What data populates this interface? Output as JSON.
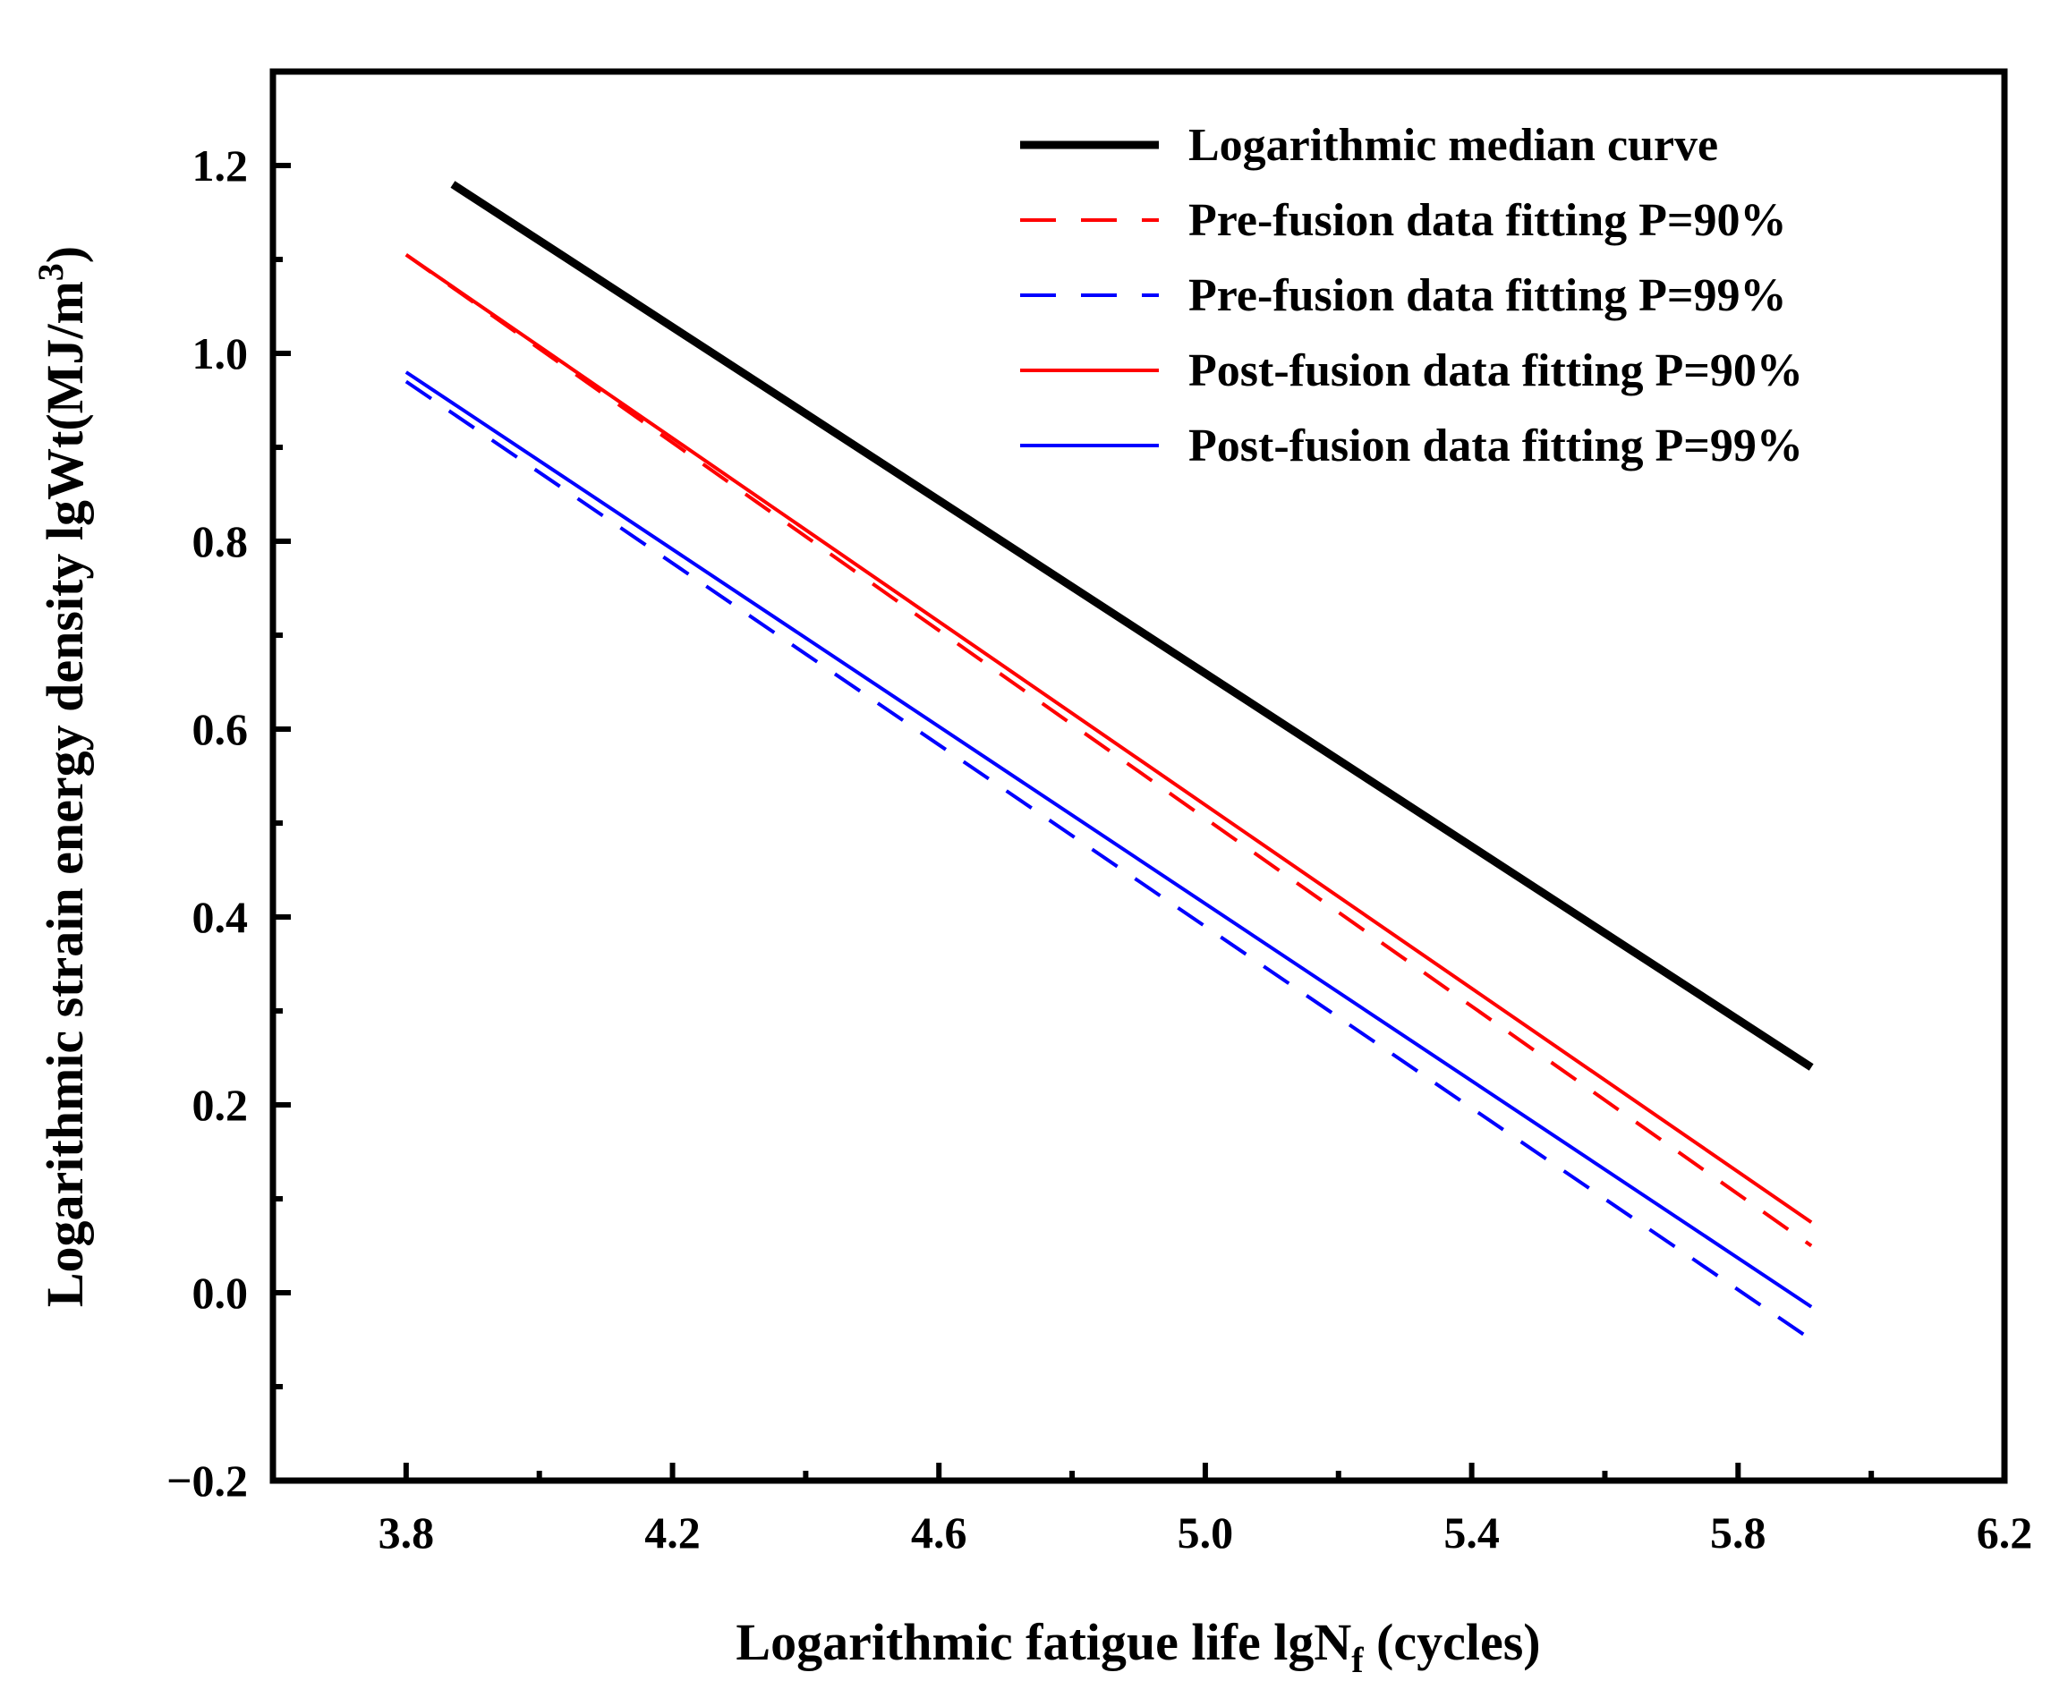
{
  "chart_data": {
    "type": "line",
    "xlabel": {
      "main": "Logarithmic fatigue life  lgN",
      "sub": "f",
      "suffix": " (cycles)"
    },
    "ylabel": {
      "main": "Logarithmic strain energy density  lgWt(MJ/m",
      "sup": "3",
      "suffix": ")"
    },
    "xlim": [
      3.6,
      6.2
    ],
    "ylim": [
      -0.2,
      1.3
    ],
    "xticks": [
      3.8,
      4.2,
      4.6,
      5.0,
      5.4,
      5.8,
      6.2
    ],
    "xtick_labels": [
      "3.8",
      "4.2",
      "4.6",
      "5.0",
      "5.4",
      "5.8",
      "6.2"
    ],
    "yticks": [
      -0.2,
      0.0,
      0.2,
      0.4,
      0.6,
      0.8,
      1.0,
      1.2
    ],
    "ytick_labels": [
      "−0.2",
      "0.0",
      "0.2",
      "0.4",
      "0.6",
      "0.8",
      "1.0",
      "1.2"
    ],
    "grid": false,
    "legend_position": "top-right",
    "series": [
      {
        "name": "Logarithmic median curve",
        "color": "#000000",
        "style": "solid",
        "width": "thick",
        "x": [
          3.87,
          5.91
        ],
        "y": [
          1.18,
          0.24
        ]
      },
      {
        "name": "Pre-fusion data fitting P=90%",
        "color": "#ff0000",
        "style": "dashed",
        "width": "normal",
        "x": [
          3.8,
          5.91
        ],
        "y": [
          1.105,
          0.05
        ]
      },
      {
        "name": "Pre-fusion data fitting P=99%",
        "color": "#0000ff",
        "style": "dashed",
        "width": "normal",
        "x": [
          3.8,
          5.91
        ],
        "y": [
          0.97,
          -0.05
        ]
      },
      {
        "name": "Post-fusion data fitting P=90%",
        "color": "#ff0000",
        "style": "solid",
        "width": "normal",
        "x": [
          3.8,
          5.91
        ],
        "y": [
          1.105,
          0.075
        ]
      },
      {
        "name": "Post-fusion data fitting P=99%",
        "color": "#0000ff",
        "style": "solid",
        "width": "normal",
        "x": [
          3.8,
          5.91
        ],
        "y": [
          0.98,
          -0.015
        ]
      }
    ]
  }
}
